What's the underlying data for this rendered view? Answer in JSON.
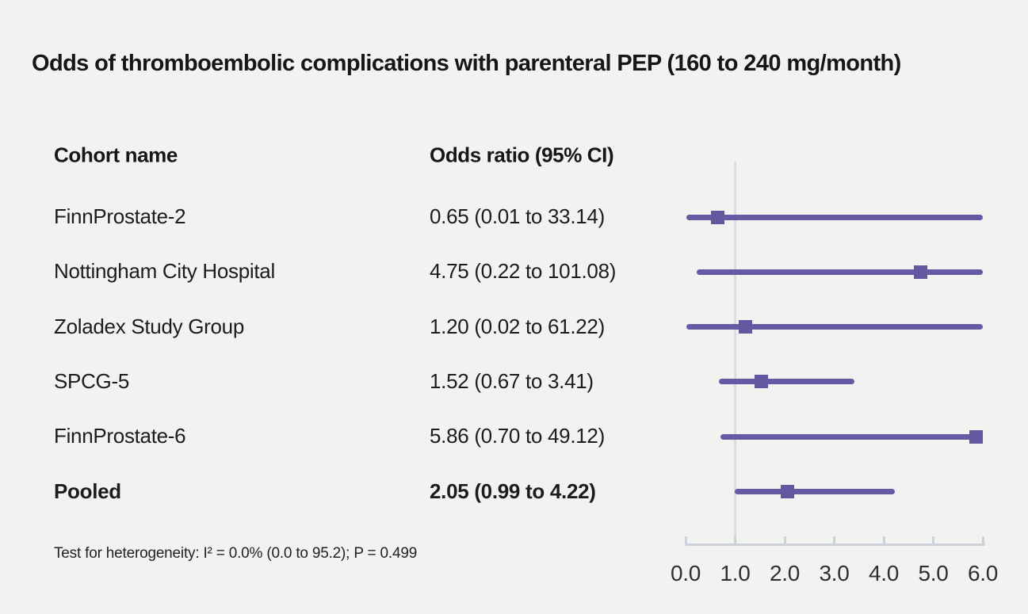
{
  "columns": {
    "cohort": "Cohort name",
    "odds_ratio": "Odds ratio (95% CI)"
  },
  "colors": {
    "ci_line": "#665aa5",
    "marker": "#63589f",
    "reference_line": "#d9dde3",
    "axis": "#cbd2d9",
    "background": "#f2f2f1",
    "text": "#1a1a1a"
  },
  "chart_data": {
    "type": "forest",
    "title": "Odds of thromboembolic complications with parenteral PEP (160 to 240 mg/month)",
    "xlabel": "",
    "x_ticks": [
      "0.0",
      "1.0",
      "2.0",
      "3.0",
      "4.0",
      "5.0",
      "6.0"
    ],
    "xlim": [
      0,
      6
    ],
    "reference_value": 1.0,
    "rows": [
      {
        "cohort": "FinnProstate-2",
        "or_text": "0.65 (0.01 to 33.14)",
        "or": 0.65,
        "ci_low": 0.01,
        "ci_high": 33.14,
        "bold": false
      },
      {
        "cohort": "Nottingham City Hospital",
        "or_text": "4.75 (0.22 to 101.08)",
        "or": 4.75,
        "ci_low": 0.22,
        "ci_high": 101.08,
        "bold": false
      },
      {
        "cohort": "Zoladex Study Group",
        "or_text": "1.20 (0.02 to 61.22)",
        "or": 1.2,
        "ci_low": 0.02,
        "ci_high": 61.22,
        "bold": false
      },
      {
        "cohort": "SPCG-5",
        "or_text": "1.52 (0.67 to 3.41)",
        "or": 1.52,
        "ci_low": 0.67,
        "ci_high": 3.41,
        "bold": false
      },
      {
        "cohort": "FinnProstate-6",
        "or_text": "5.86 (0.70 to 49.12)",
        "or": 5.86,
        "ci_low": 0.7,
        "ci_high": 49.12,
        "bold": false
      },
      {
        "cohort": "Pooled",
        "or_text": "2.05 (0.99 to 4.22)",
        "or": 2.05,
        "ci_low": 0.99,
        "ci_high": 4.22,
        "bold": true
      }
    ],
    "heterogeneity_note": "Test for heterogeneity: I² = 0.0% (0.0 to 95.2); P = 0.499"
  }
}
